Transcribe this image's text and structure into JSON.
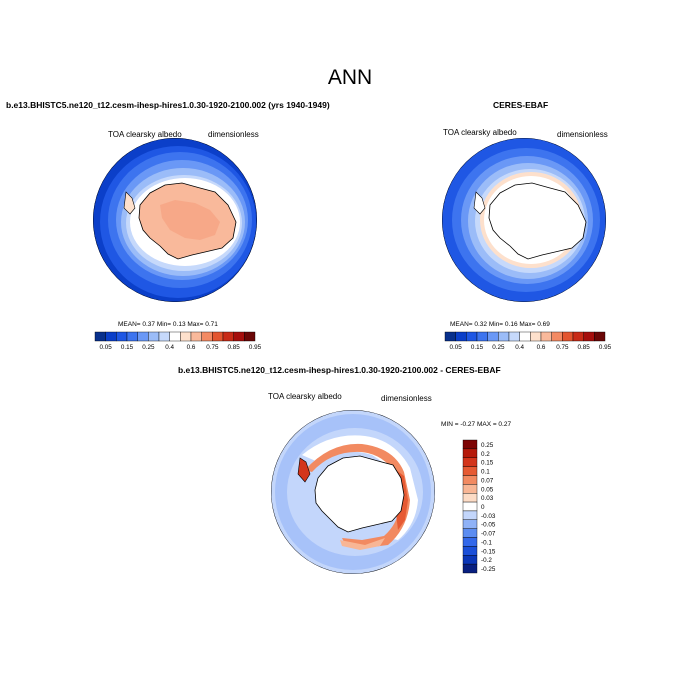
{
  "title": "ANN",
  "palette_seq": [
    "#08308c",
    "#0b3fc9",
    "#1f57e4",
    "#3d74ef",
    "#6a98f6",
    "#9bbcf8",
    "#c6d9fb",
    "#ffffff",
    "#fde0cc",
    "#f9b99b",
    "#f38a63",
    "#e3552f",
    "#c82b17",
    "#a50e0c",
    "#6a0606"
  ],
  "palette_div": [
    "#081f80",
    "#0a36b7",
    "#1a4fd8",
    "#3268ea",
    "#5b8cf1",
    "#8fb2f7",
    "#c3d6fb",
    "#ffffff",
    "#fcdcc6",
    "#f8b695",
    "#f28a61",
    "#e65a33",
    "#d3351b",
    "#b51a0b",
    "#7d0404"
  ],
  "panels": [
    {
      "name": "model",
      "title": "b.e13.BHISTC5.ne120_t12.cesm-ihesp-hires1.0.30-1920-2100.002 (yrs 1940-1949)",
      "left_label": "TOA clearsky albedo",
      "right_label": "dimensionless",
      "stats": "MEAN=   0.37  Min=   0.13  Max=   0.71",
      "colorbar_labels": [
        "0.05",
        "0.15",
        "0.25",
        "0.4",
        "0.6",
        "0.75",
        "0.85",
        "0.95"
      ]
    },
    {
      "name": "obs",
      "title": "CERES-EBAF",
      "left_label": "TOA clearsky albedo",
      "right_label": "dimensionless",
      "stats": "MEAN=   0.32  Min=   0.16  Max=   0.69",
      "colorbar_labels": [
        "0.05",
        "0.15",
        "0.25",
        "0.4",
        "0.6",
        "0.75",
        "0.85",
        "0.95"
      ]
    },
    {
      "name": "difference",
      "title": "b.e13.BHISTC5.ne120_t12.cesm-ihesp-hires1.0.30-1920-2100.002 - CERES-EBAF",
      "left_label": "TOA clearsky albedo",
      "right_label": "dimensionless",
      "stats": "MIN =  -0.27  MAX =   0.27",
      "colorbar_labels": [
        "0.25",
        "0.2",
        "0.15",
        "0.1",
        "0.07",
        "0.05",
        "0.03",
        "0",
        "-0.03",
        "-0.05",
        "-0.07",
        "-0.1",
        "-0.15",
        "-0.2",
        "-0.25"
      ]
    }
  ]
}
